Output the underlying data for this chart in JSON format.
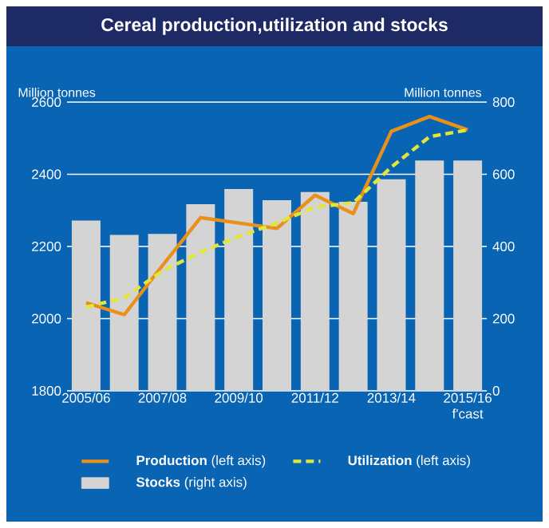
{
  "chart_data": {
    "type": "bar",
    "title": "Cereal production,utilization and stocks",
    "ylabel": "Million tonnes",
    "y2label": "Million tonnes",
    "categories": [
      "2005/06",
      null,
      "2007/08",
      null,
      "2009/10",
      null,
      "2011/12",
      null,
      "2013/14",
      null,
      "2015/16 f'cast"
    ],
    "ylim": [
      1800,
      2600
    ],
    "yticks": [
      1800,
      2000,
      2200,
      2400,
      2600
    ],
    "y2lim": [
      0,
      800
    ],
    "y2ticks": [
      0,
      200,
      400,
      600,
      800
    ],
    "grid": "y",
    "legend": "bottom",
    "series": [
      {
        "name": "**Production** (left axis)",
        "type": "line",
        "color": "#e8901a",
        "line_style": "solid",
        "values": [
          2044,
          2011,
          2147,
          2280,
          2265,
          2250,
          2342,
          2291,
          2519,
          2560,
          2523
        ]
      },
      {
        "name": "**Utilization** (left axis)",
        "type": "line",
        "color": "#e2e63a",
        "line_style": "dashed",
        "values": [
          2032,
          2058,
          2132,
          2184,
          2228,
          2265,
          2309,
          2321,
          2420,
          2504,
          2523
        ]
      },
      {
        "name": "**Stocks** (right axis)",
        "axis": "y2",
        "color": "#d4d4d4",
        "values": [
          472,
          432,
          435,
          517,
          559,
          528,
          551,
          524,
          586,
          638,
          638
        ]
      }
    ]
  }
}
